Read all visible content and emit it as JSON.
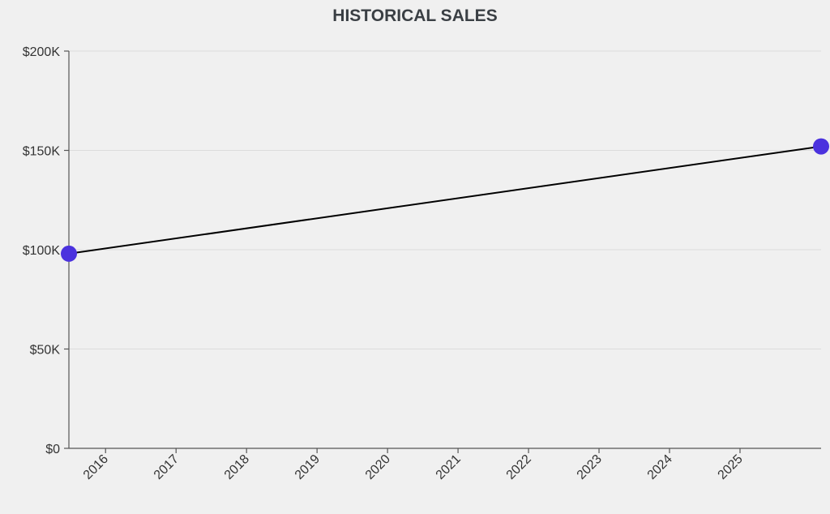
{
  "chart_data": {
    "type": "line",
    "title": "HISTORICAL SALES",
    "xlabel": "",
    "ylabel": "",
    "x_ticks": [
      "2016",
      "2017",
      "2018",
      "2019",
      "2020",
      "2021",
      "2022",
      "2023",
      "2024",
      "2025"
    ],
    "y_ticks": [
      "$0",
      "$50K",
      "$100K",
      "$150K",
      "$200K"
    ],
    "y_tick_values": [
      0,
      50000,
      100000,
      150000,
      200000
    ],
    "xlim": [
      2015.48,
      2026.15
    ],
    "ylim": [
      0,
      200000
    ],
    "grid": "horizontal",
    "series": [
      {
        "name": "Sales",
        "x": [
          2015.48,
          2026.15
        ],
        "values": [
          98000,
          152000
        ],
        "line_color": "#000000",
        "marker_color": "#4b32de"
      }
    ]
  }
}
